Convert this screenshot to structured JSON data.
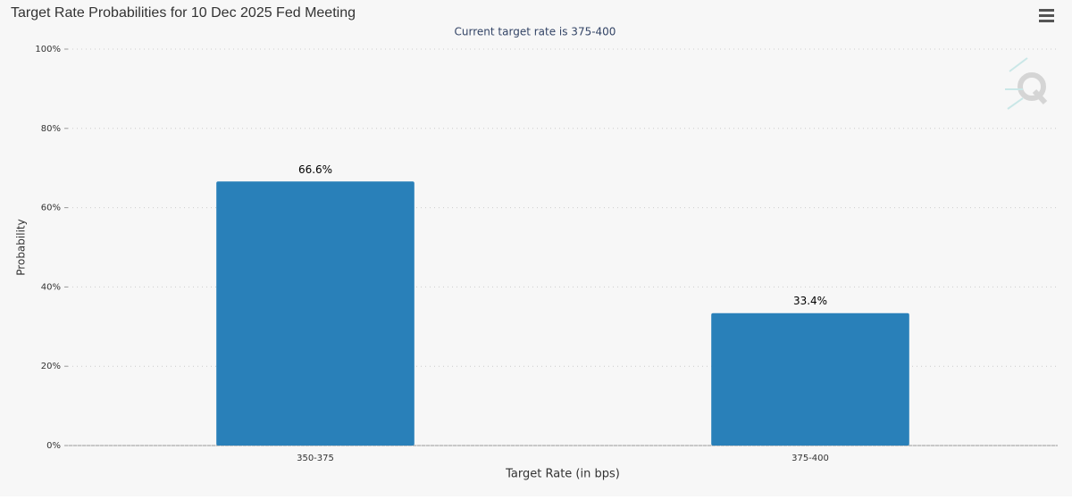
{
  "chart_data": {
    "type": "bar",
    "title": "Target Rate Probabilities for 10 Dec 2025 Fed Meeting",
    "subtitle": "Current target rate is 375-400",
    "x_label": "Target Rate (in bps)",
    "y_label": "Probability",
    "categories": [
      "350-375",
      "375-400"
    ],
    "values": [
      66.6,
      33.4
    ],
    "value_labels": [
      "66.6%",
      "33.4%"
    ],
    "color": "#2980b9",
    "ylim": [
      0,
      100
    ],
    "yticks": [
      {
        "value": 0,
        "label": "0%"
      },
      {
        "value": 20,
        "label": "20%"
      },
      {
        "value": 40,
        "label": "40%"
      },
      {
        "value": 60,
        "label": "60%"
      },
      {
        "value": 80,
        "label": "80%"
      },
      {
        "value": 100,
        "label": "100%"
      }
    ],
    "grid": true
  }
}
